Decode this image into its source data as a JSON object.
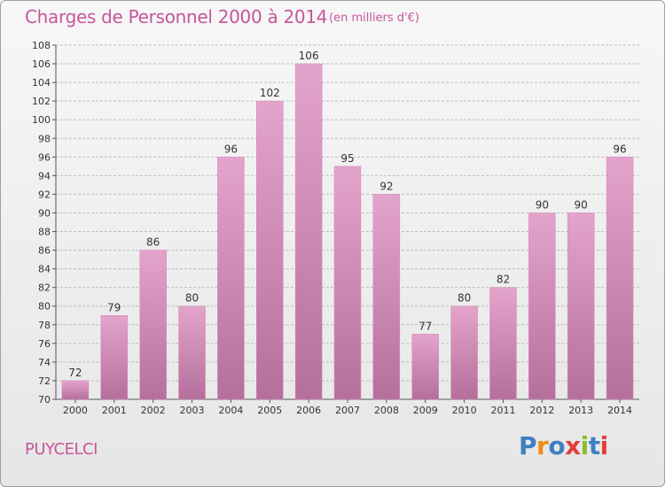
{
  "header": {
    "title": "Charges de Personnel 2000 à 2014",
    "subtitle": "(en milliers d'€)"
  },
  "footer": {
    "commune": "PUYCELCI",
    "logo_text": "Proxiti",
    "logo_colors": [
      "#3e7fc4",
      "#f08a1c",
      "#3e7fc4",
      "#e53c3c",
      "#8dbb2b",
      "#3e7fc4",
      "#e53c3c"
    ]
  },
  "colors": {
    "bar_light": "#e3a4cb",
    "bar_dark": "#b56f9c",
    "grid": "#bdbdbd",
    "accent": "#c6569a"
  },
  "chart_data": {
    "type": "bar",
    "title": "Charges de Personnel 2000 à 2014",
    "subtitle": "(en milliers d'€)",
    "categories": [
      "2000",
      "2001",
      "2002",
      "2003",
      "2004",
      "2005",
      "2006",
      "2007",
      "2008",
      "2009",
      "2010",
      "2011",
      "2012",
      "2013",
      "2014"
    ],
    "values": [
      72,
      79,
      86,
      80,
      96,
      102,
      106,
      95,
      92,
      77,
      80,
      82,
      90,
      90,
      96
    ],
    "ylim": [
      70,
      108
    ],
    "yticks": [
      70,
      72,
      74,
      76,
      78,
      80,
      82,
      84,
      86,
      88,
      90,
      92,
      94,
      96,
      98,
      100,
      102,
      104,
      106,
      108
    ],
    "grid": true,
    "xlabel": "",
    "ylabel": ""
  }
}
